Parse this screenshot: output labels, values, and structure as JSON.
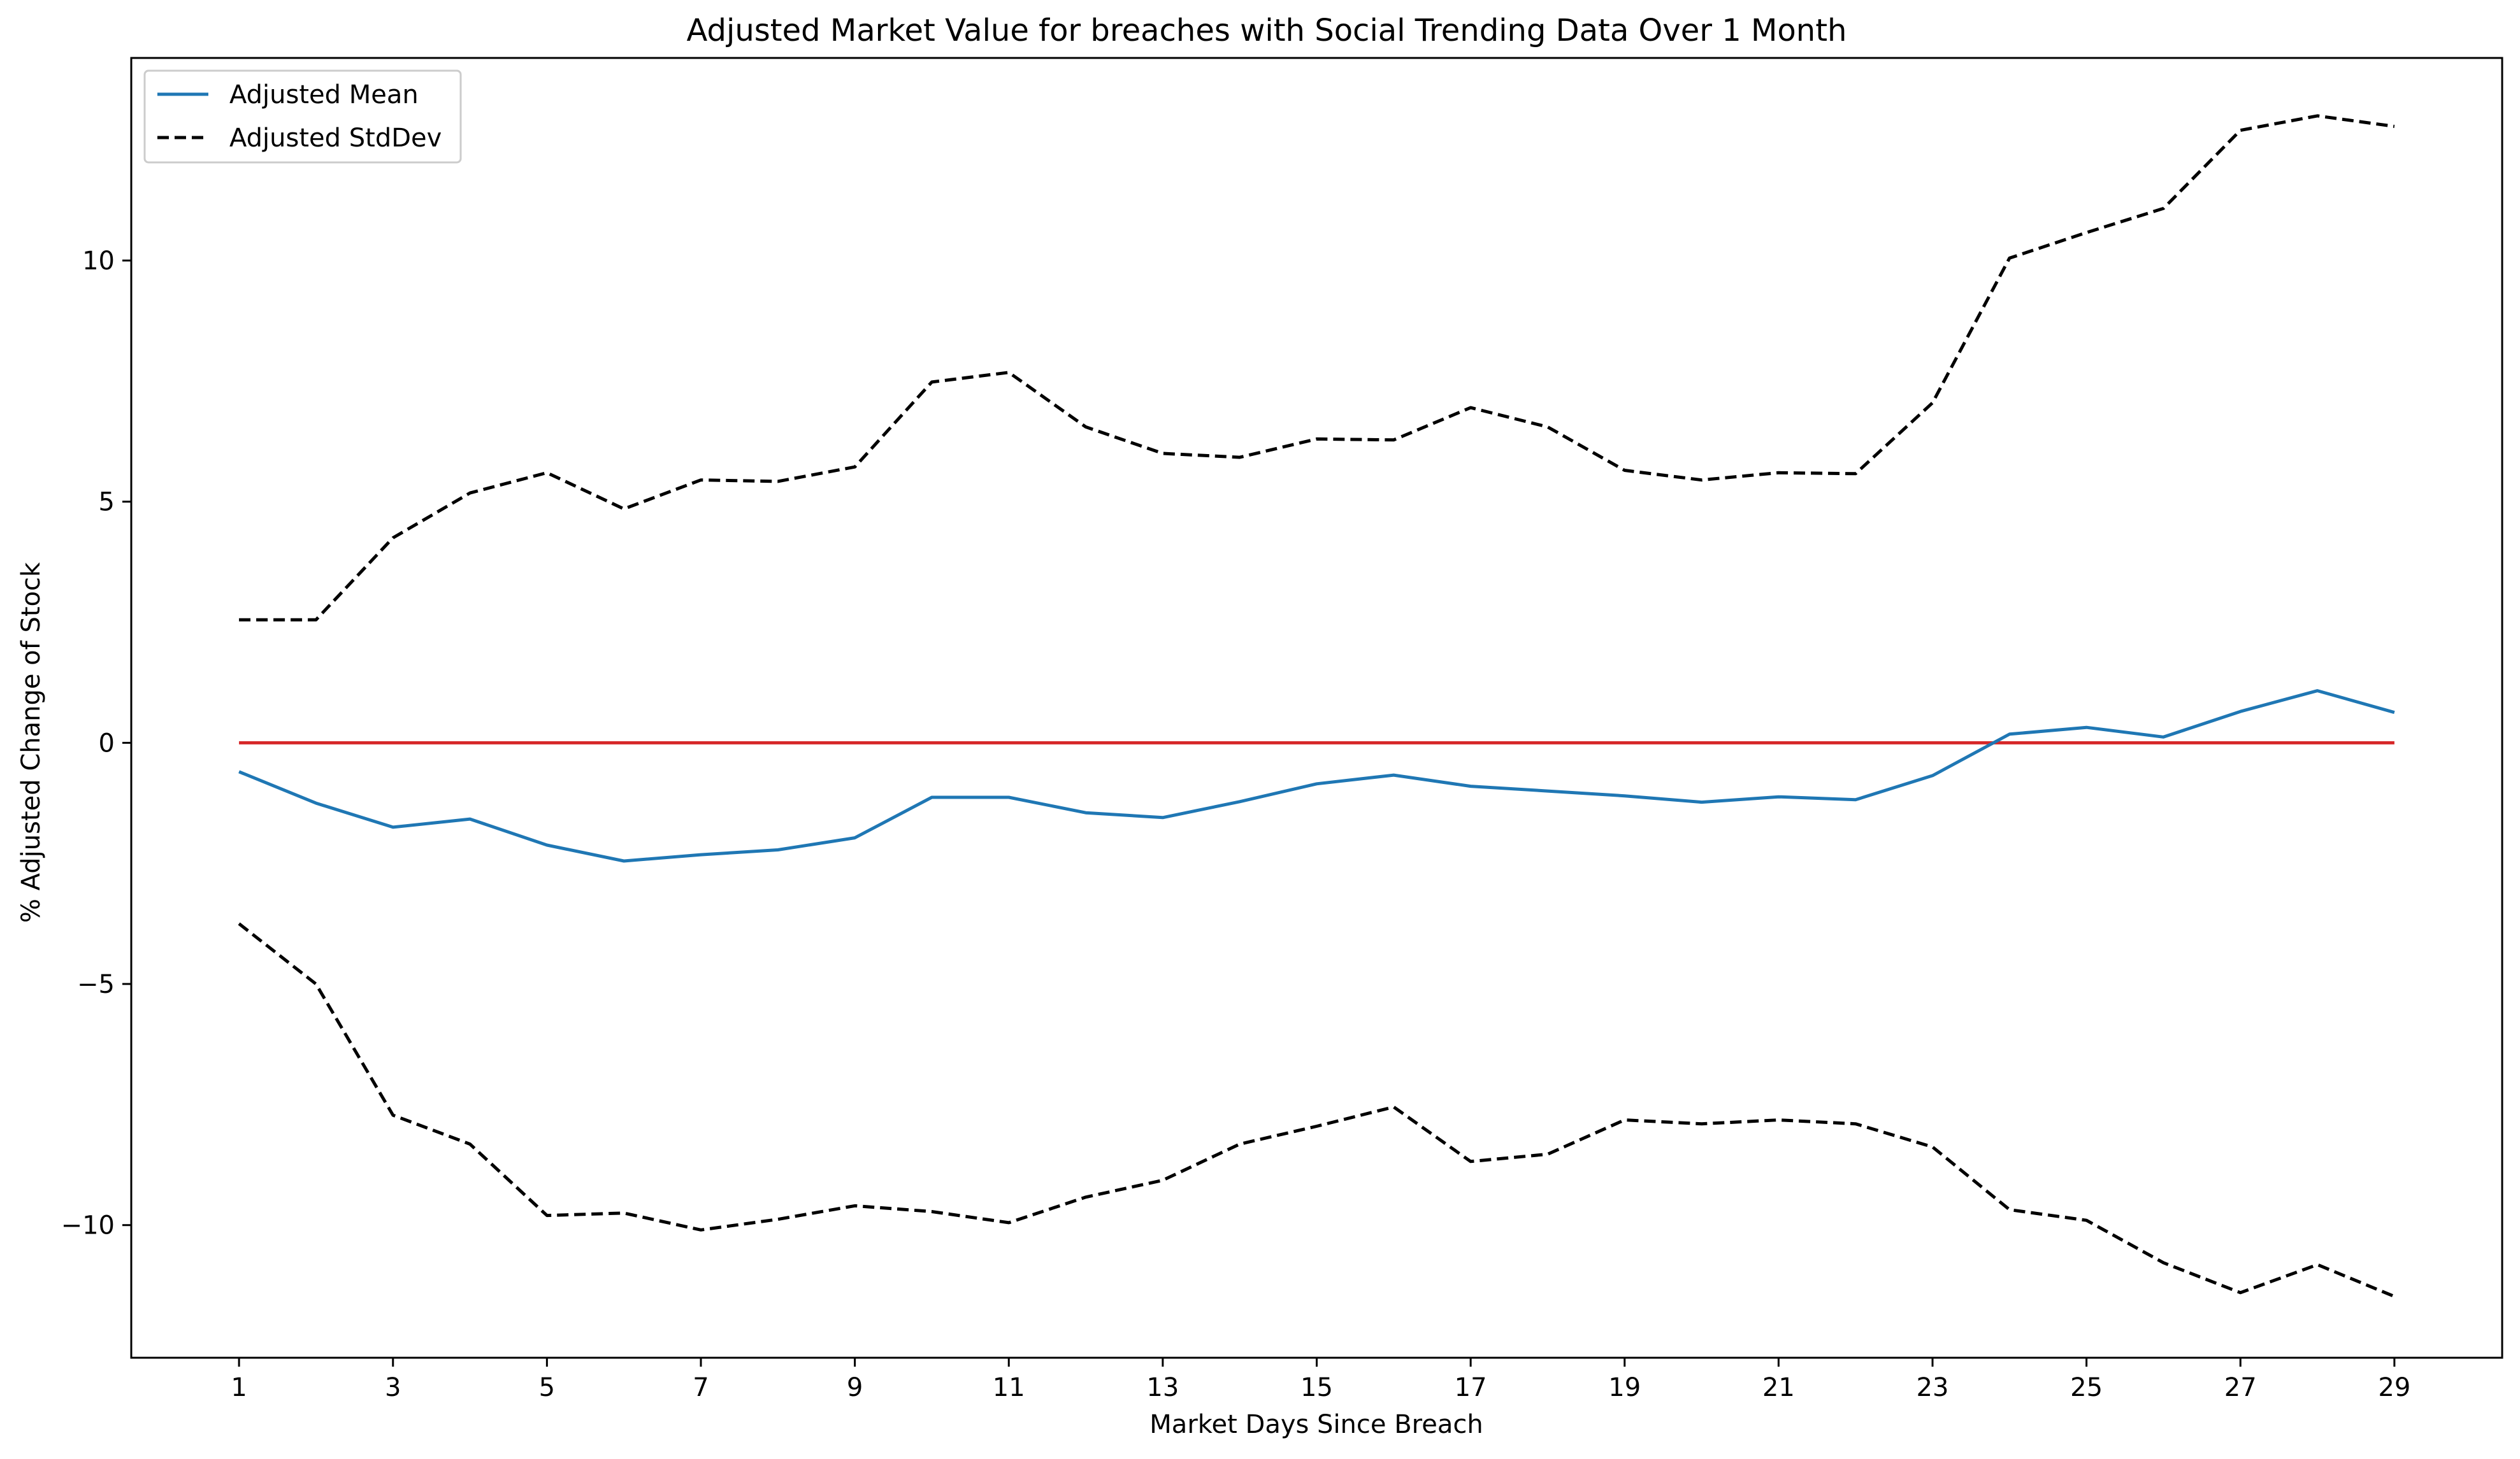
{
  "chart_data": {
    "type": "line",
    "title": "Adjusted Market Value for breaches with Social Trending Data Over 1 Month",
    "xlabel": "Market Days Since Breach",
    "ylabel": "% Adjusted Change of Stock",
    "x": [
      1,
      2,
      3,
      4,
      5,
      6,
      7,
      8,
      9,
      10,
      11,
      12,
      13,
      14,
      15,
      16,
      17,
      18,
      19,
      20,
      21,
      22,
      23,
      24,
      25,
      26,
      27,
      28,
      29
    ],
    "xlim": [
      -0.4,
      30.4
    ],
    "ylim": [
      -12.75,
      14.2
    ],
    "xticks": [
      1,
      3,
      5,
      7,
      9,
      11,
      13,
      15,
      17,
      19,
      21,
      23,
      25,
      27,
      29
    ],
    "yticks": [
      -10,
      -5,
      0,
      5,
      10
    ],
    "ytick_labels": [
      "−10",
      "−5",
      "0",
      "5",
      "10"
    ],
    "grid": false,
    "legend_position": "upper-left",
    "series": [
      {
        "name": "Adjusted Mean",
        "style": "solid",
        "color": "#1f77b4",
        "values": [
          -0.6,
          -1.25,
          -1.75,
          -1.58,
          -2.12,
          -2.45,
          -2.32,
          -2.22,
          -1.97,
          -1.13,
          -1.13,
          -1.45,
          -1.55,
          -1.22,
          -0.85,
          -0.67,
          -0.9,
          -1.0,
          -1.1,
          -1.23,
          -1.12,
          -1.18,
          -0.68,
          0.18,
          0.32,
          0.12,
          0.65,
          1.08,
          0.63
        ]
      },
      {
        "name": "Adjusted StdDev",
        "style": "dashed",
        "color": "#000000",
        "values": [
          2.55,
          2.55,
          4.25,
          5.18,
          5.6,
          4.85,
          5.45,
          5.42,
          5.72,
          7.48,
          7.68,
          6.55,
          6.0,
          5.92,
          6.3,
          6.28,
          6.95,
          6.55,
          5.65,
          5.45,
          5.6,
          5.58,
          7.05,
          10.05,
          10.58,
          11.08,
          12.7,
          13.0,
          12.78
        ]
      },
      {
        "name": "",
        "style": "dashed",
        "color": "#000000",
        "values": [
          -3.75,
          -5.0,
          -7.72,
          -8.32,
          -9.8,
          -9.75,
          -10.1,
          -9.88,
          -9.6,
          -9.72,
          -9.95,
          -9.42,
          -9.07,
          -8.32,
          -7.95,
          -7.55,
          -8.68,
          -8.53,
          -7.82,
          -7.9,
          -7.82,
          -7.9,
          -8.38,
          -9.68,
          -9.9,
          -10.78,
          -11.4,
          -10.82,
          -11.48
        ]
      },
      {
        "name": "",
        "style": "solid",
        "color": "#d62728",
        "values": [
          0,
          0,
          0,
          0,
          0,
          0,
          0,
          0,
          0,
          0,
          0,
          0,
          0,
          0,
          0,
          0,
          0,
          0,
          0,
          0,
          0,
          0,
          0,
          0,
          0,
          0,
          0,
          0,
          0
        ]
      }
    ]
  }
}
